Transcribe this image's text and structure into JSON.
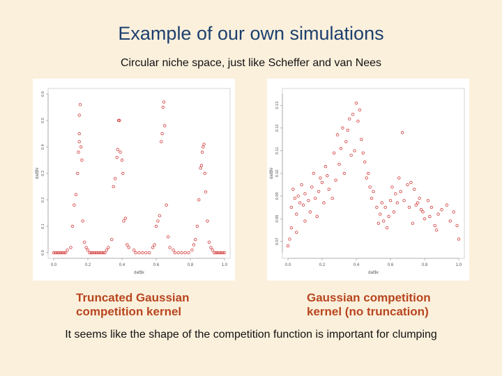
{
  "slide": {
    "title": "Example of our own simulations",
    "subtitle": "Circular niche space, just like Scheffer and van Nees",
    "caption_left": "Truncated Gaussian competition kernel",
    "caption_right": "Gaussian competition kernel (no truncation)",
    "conclusion": "It seems like the shape of the competition function is important for clumping"
  },
  "colors": {
    "background": "#fbf0dc",
    "title": "#1c3f6e",
    "caption": "#b8451f",
    "points": "#d23a3a"
  },
  "chart_data": [
    {
      "type": "scatter",
      "xlabel": "dat$x",
      "ylabel": "dat$N",
      "xlim": [
        0,
        1
      ],
      "ylim": [
        0,
        0.6
      ],
      "xticks": [
        "0.0",
        "0.2",
        "0.4",
        "0.6",
        "0.8",
        "1.0"
      ],
      "yticks": [
        "0.0",
        "0.1",
        "0.2",
        "0.3",
        "0.4",
        "0.5",
        "0.6"
      ],
      "points": [
        [
          0.0,
          0.0
        ],
        [
          0.01,
          0.0
        ],
        [
          0.02,
          0.0
        ],
        [
          0.03,
          0.0
        ],
        [
          0.04,
          0.0
        ],
        [
          0.05,
          0.0
        ],
        [
          0.06,
          0.0
        ],
        [
          0.07,
          0.0
        ],
        [
          0.08,
          0.01
        ],
        [
          0.1,
          0.02
        ],
        [
          0.11,
          0.1
        ],
        [
          0.12,
          0.18
        ],
        [
          0.13,
          0.22
        ],
        [
          0.14,
          0.3
        ],
        [
          0.145,
          0.38
        ],
        [
          0.15,
          0.42
        ],
        [
          0.15,
          0.45
        ],
        [
          0.15,
          0.52
        ],
        [
          0.155,
          0.56
        ],
        [
          0.16,
          0.4
        ],
        [
          0.165,
          0.35
        ],
        [
          0.17,
          0.12
        ],
        [
          0.18,
          0.04
        ],
        [
          0.19,
          0.02
        ],
        [
          0.2,
          0.01
        ],
        [
          0.21,
          0.0
        ],
        [
          0.22,
          0.0
        ],
        [
          0.23,
          0.0
        ],
        [
          0.24,
          0.0
        ],
        [
          0.25,
          0.0
        ],
        [
          0.26,
          0.0
        ],
        [
          0.27,
          0.0
        ],
        [
          0.28,
          0.0
        ],
        [
          0.29,
          0.0
        ],
        [
          0.3,
          0.0
        ],
        [
          0.31,
          0.01
        ],
        [
          0.32,
          0.02
        ],
        [
          0.34,
          0.05
        ],
        [
          0.35,
          0.25
        ],
        [
          0.36,
          0.28
        ],
        [
          0.37,
          0.36
        ],
        [
          0.375,
          0.39
        ],
        [
          0.38,
          0.5
        ],
        [
          0.385,
          0.5
        ],
        [
          0.39,
          0.38
        ],
        [
          0.4,
          0.35
        ],
        [
          0.405,
          0.3
        ],
        [
          0.41,
          0.12
        ],
        [
          0.42,
          0.13
        ],
        [
          0.43,
          0.03
        ],
        [
          0.44,
          0.02
        ],
        [
          0.47,
          0.01
        ],
        [
          0.48,
          0.0
        ],
        [
          0.5,
          0.0
        ],
        [
          0.52,
          0.0
        ],
        [
          0.54,
          0.0
        ],
        [
          0.56,
          0.0
        ],
        [
          0.58,
          0.02
        ],
        [
          0.59,
          0.03
        ],
        [
          0.6,
          0.1
        ],
        [
          0.61,
          0.12
        ],
        [
          0.62,
          0.14
        ],
        [
          0.63,
          0.42
        ],
        [
          0.635,
          0.45
        ],
        [
          0.64,
          0.55
        ],
        [
          0.645,
          0.57
        ],
        [
          0.65,
          0.48
        ],
        [
          0.66,
          0.18
        ],
        [
          0.67,
          0.06
        ],
        [
          0.68,
          0.02
        ],
        [
          0.7,
          0.01
        ],
        [
          0.71,
          0.0
        ],
        [
          0.73,
          0.0
        ],
        [
          0.75,
          0.0
        ],
        [
          0.77,
          0.0
        ],
        [
          0.79,
          0.0
        ],
        [
          0.81,
          0.01
        ],
        [
          0.82,
          0.03
        ],
        [
          0.83,
          0.05
        ],
        [
          0.84,
          0.1
        ],
        [
          0.85,
          0.2
        ],
        [
          0.86,
          0.32
        ],
        [
          0.865,
          0.33
        ],
        [
          0.87,
          0.38
        ],
        [
          0.875,
          0.4
        ],
        [
          0.88,
          0.41
        ],
        [
          0.885,
          0.3
        ],
        [
          0.89,
          0.23
        ],
        [
          0.9,
          0.12
        ],
        [
          0.91,
          0.04
        ],
        [
          0.92,
          0.02
        ],
        [
          0.93,
          0.01
        ],
        [
          0.94,
          0.0
        ],
        [
          0.95,
          0.0
        ],
        [
          0.96,
          0.0
        ],
        [
          0.97,
          0.0
        ],
        [
          0.98,
          0.0
        ],
        [
          0.99,
          0.0
        ],
        [
          1.0,
          0.0
        ]
      ]
    },
    {
      "type": "scatter",
      "xlabel": "dat$x",
      "ylabel": "dat$N",
      "xlim": [
        0,
        1
      ],
      "ylim": [
        0.065,
        0.135
      ],
      "xticks": [
        "0.0",
        "0.2",
        "0.4",
        "0.6",
        "0.8",
        "1.0"
      ],
      "yticks": [
        "0.07",
        "0.08",
        "0.09",
        "0.10",
        "0.11",
        "0.12",
        "0.13"
      ],
      "points": [
        [
          0.0,
          0.068
        ],
        [
          0.01,
          0.071
        ],
        [
          0.02,
          0.085
        ],
        [
          0.02,
          0.076
        ],
        [
          0.03,
          0.093
        ],
        [
          0.04,
          0.089
        ],
        [
          0.05,
          0.082
        ],
        [
          0.05,
          0.074
        ],
        [
          0.06,
          0.09
        ],
        [
          0.07,
          0.087
        ],
        [
          0.08,
          0.095
        ],
        [
          0.09,
          0.086
        ],
        [
          0.1,
          0.079
        ],
        [
          0.1,
          0.091
        ],
        [
          0.12,
          0.088
        ],
        [
          0.13,
          0.083
        ],
        [
          0.14,
          0.094
        ],
        [
          0.15,
          0.1
        ],
        [
          0.16,
          0.089
        ],
        [
          0.17,
          0.081
        ],
        [
          0.18,
          0.092
        ],
        [
          0.19,
          0.098
        ],
        [
          0.2,
          0.096
        ],
        [
          0.21,
          0.087
        ],
        [
          0.22,
          0.103
        ],
        [
          0.23,
          0.099
        ],
        [
          0.24,
          0.093
        ],
        [
          0.26,
          0.089
        ],
        [
          0.27,
          0.109
        ],
        [
          0.28,
          0.097
        ],
        [
          0.29,
          0.117
        ],
        [
          0.3,
          0.104
        ],
        [
          0.31,
          0.111
        ],
        [
          0.32,
          0.12
        ],
        [
          0.33,
          0.1
        ],
        [
          0.34,
          0.114
        ],
        [
          0.35,
          0.119
        ],
        [
          0.36,
          0.124
        ],
        [
          0.37,
          0.108
        ],
        [
          0.38,
          0.126
        ],
        [
          0.39,
          0.11
        ],
        [
          0.4,
          0.131
        ],
        [
          0.41,
          0.123
        ],
        [
          0.42,
          0.128
        ],
        [
          0.43,
          0.115
        ],
        [
          0.44,
          0.109
        ],
        [
          0.45,
          0.105
        ],
        [
          0.46,
          0.098
        ],
        [
          0.47,
          0.1
        ],
        [
          0.48,
          0.094
        ],
        [
          0.49,
          0.089
        ],
        [
          0.5,
          0.092
        ],
        [
          0.52,
          0.085
        ],
        [
          0.53,
          0.078
        ],
        [
          0.54,
          0.082
        ],
        [
          0.55,
          0.087
        ],
        [
          0.56,
          0.079
        ],
        [
          0.57,
          0.085
        ],
        [
          0.58,
          0.076
        ],
        [
          0.59,
          0.081
        ],
        [
          0.6,
          0.088
        ],
        [
          0.61,
          0.094
        ],
        [
          0.62,
          0.083
        ],
        [
          0.63,
          0.091
        ],
        [
          0.64,
          0.087
        ],
        [
          0.65,
          0.098
        ],
        [
          0.66,
          0.092
        ],
        [
          0.67,
          0.118
        ],
        [
          0.68,
          0.088
        ],
        [
          0.7,
          0.095
        ],
        [
          0.71,
          0.085
        ],
        [
          0.72,
          0.096
        ],
        [
          0.73,
          0.078
        ],
        [
          0.74,
          0.093
        ],
        [
          0.75,
          0.086
        ],
        [
          0.76,
          0.087
        ],
        [
          0.77,
          0.089
        ],
        [
          0.78,
          0.084
        ],
        [
          0.79,
          0.083
        ],
        [
          0.8,
          0.08
        ],
        [
          0.82,
          0.088
        ],
        [
          0.83,
          0.081
        ],
        [
          0.84,
          0.085
        ],
        [
          0.86,
          0.077
        ],
        [
          0.87,
          0.075
        ],
        [
          0.88,
          0.082
        ],
        [
          0.9,
          0.084
        ],
        [
          0.93,
          0.086
        ],
        [
          0.95,
          0.079
        ],
        [
          0.97,
          0.083
        ],
        [
          0.99,
          0.077
        ],
        [
          1.0,
          0.071
        ]
      ]
    }
  ]
}
